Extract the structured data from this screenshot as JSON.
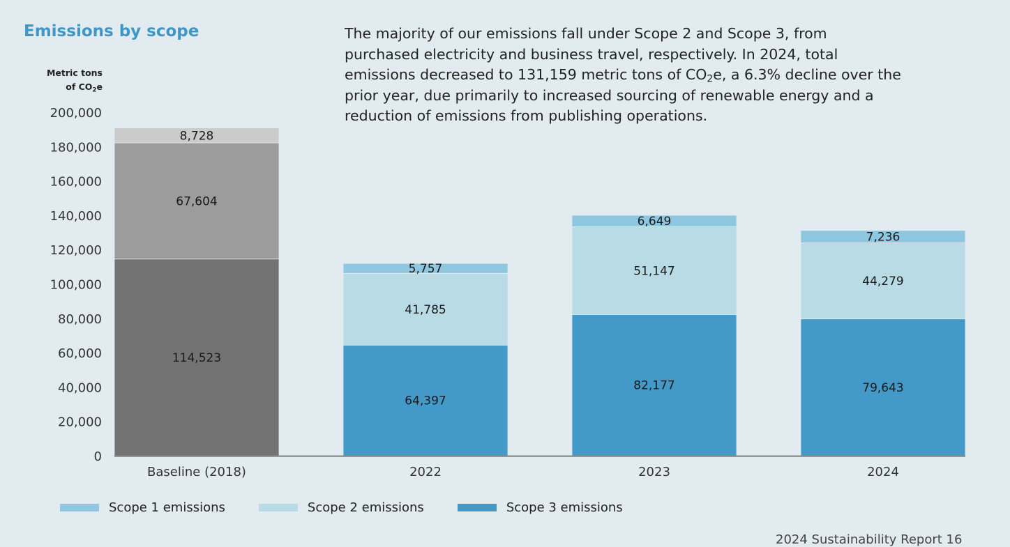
{
  "chart_data": {
    "type": "bar",
    "stacked": true,
    "title": "Emissions by scope",
    "subtitle": "The majority of our emissions fall under Scope 2 and Scope 3, from purchased electricity and business travel, respectively. In 2024, total emissions decreased to 131,159 metric tons of CO₂e, a 6.3% decline over the prior year, due primarily to increased sourcing of renewable energy and a reduction of emissions from publishing operations.",
    "ylabel_line1": "Metric tons",
    "ylabel_line2": "of CO₂e",
    "ylim": [
      0,
      200000
    ],
    "yticks": [
      "0",
      "20,000",
      "40,000",
      "60,000",
      "80,000",
      "100,000",
      "120,000",
      "140,000",
      "160,000",
      "180,000",
      "200,000"
    ],
    "categories": [
      "Baseline (2018)",
      "2022",
      "2023",
      "2024"
    ],
    "series": [
      {
        "name": "Scope 3 emissions",
        "values": [
          114523,
          64397,
          82177,
          79643
        ],
        "labels": [
          "114,523",
          "64,397",
          "82,177",
          "79,643"
        ]
      },
      {
        "name": "Scope 2 emissions",
        "values": [
          67604,
          41785,
          51147,
          44279
        ],
        "labels": [
          "67,604",
          "41,785",
          "51,147",
          "44,279"
        ]
      },
      {
        "name": "Scope 1 emissions",
        "values": [
          8728,
          5757,
          6649,
          7236
        ],
        "labels": [
          "8,728",
          "5,757",
          "6,649",
          "7,236"
        ]
      }
    ],
    "colors": {
      "Scope 1 emissions": "#8ec7df",
      "Scope 2 emissions": "#b8dbe6",
      "Scope 3 emissions": "#4399c8"
    },
    "baseline_colors": {
      "Scope 1 emissions": "#cbcbcb",
      "Scope 2 emissions": "#9c9c9c",
      "Scope 3 emissions": "#737373"
    },
    "legend": [
      "Scope 1 emissions",
      "Scope 2 emissions",
      "Scope 3 emissions"
    ],
    "legend_position": "bottom-left",
    "grid": false
  },
  "footer": {
    "text": "2024 Sustainability Report 16"
  }
}
